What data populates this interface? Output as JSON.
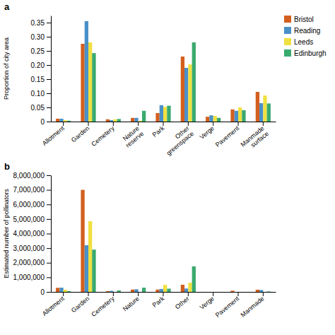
{
  "chart_data": [
    {
      "type": "bar",
      "title": "a",
      "categories": [
        "Allotment",
        "Garden",
        "Cemetery",
        "Nature\nreserve",
        "Park",
        "Other\ngreenspace",
        "Verge",
        "Pavement",
        "Manmade\nsurface"
      ],
      "ylabel": "Proportion of city area",
      "series": [
        {
          "name": "Bristol",
          "color": "#d35f1e",
          "values": [
            0.01,
            0.275,
            0.008,
            0.013,
            0.03,
            0.23,
            0.017,
            0.043,
            0.105
          ]
        },
        {
          "name": "Reading",
          "color": "#4a90c8",
          "values": [
            0.01,
            0.355,
            0.005,
            0.013,
            0.058,
            0.19,
            0.022,
            0.038,
            0.065
          ]
        },
        {
          "name": "Leeds",
          "color": "#f0e040",
          "values": [
            0.005,
            0.28,
            0.008,
            0.003,
            0.052,
            0.202,
            0.02,
            0.05,
            0.092
          ]
        },
        {
          "name": "Edinburgh",
          "color": "#3aaa6e",
          "values": [
            0.003,
            0.242,
            0.009,
            0.038,
            0.056,
            0.28,
            0.013,
            0.04,
            0.064
          ]
        }
      ],
      "ylim": [
        0,
        0.375
      ],
      "yticks": [
        0,
        0.05,
        {
          "value": 0.1,
          "label": "0.10"
        },
        0.15,
        {
          "value": 0.2,
          "label": "0.20"
        },
        0.25,
        {
          "value": 0.3,
          "label": "0.30"
        },
        0.35
      ],
      "grid": false,
      "legend": "right"
    },
    {
      "type": "bar",
      "title": "b",
      "categories": [
        "Allotment",
        "Garden",
        "Cemetery",
        "Nature",
        "Park",
        "Other",
        "Verge",
        "Pavement",
        "Manmade"
      ],
      "ylabel": "Estimated number of pollinators",
      "series": [
        {
          "color": "#d35f1e",
          "values": [
            280000,
            7000000,
            50000,
            160000,
            160000,
            490000,
            0,
            80000,
            150000
          ]
        },
        {
          "color": "#4a90c8",
          "values": [
            290000,
            3200000,
            70000,
            180000,
            200000,
            230000,
            0,
            0,
            130000
          ]
        },
        {
          "color": "#f0e040",
          "values": [
            150000,
            4850000,
            0,
            0,
            480000,
            630000,
            0,
            0,
            0
          ]
        },
        {
          "color": "#3aaa6e",
          "values": [
            50000,
            2900000,
            100000,
            290000,
            220000,
            1750000,
            0,
            0,
            30000
          ]
        }
      ],
      "ylim": [
        0,
        8000000
      ],
      "yticks": [
        0,
        {
          "value": 1000000,
          "label": "1,000,000"
        },
        {
          "value": 2000000,
          "label": "2,000,000"
        },
        {
          "value": 3000000,
          "label": "3,000,000"
        },
        {
          "value": 4000000,
          "label": "4,000,000"
        },
        {
          "value": 5000000,
          "label": "5,000,000"
        },
        {
          "value": 6000000,
          "label": "6,000,000"
        },
        {
          "value": 7000000,
          "label": "7,000,000"
        },
        {
          "value": 8000000,
          "label": "8,000,000"
        }
      ],
      "grid": false
    }
  ]
}
